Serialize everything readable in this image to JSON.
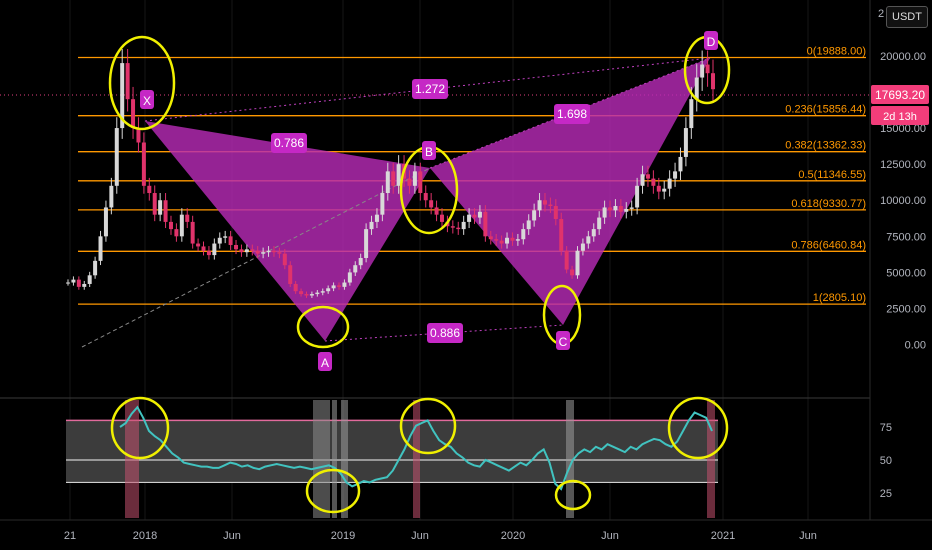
{
  "currency": "USDT",
  "price_label": "17693.20",
  "countdown_label": "2d 13h",
  "price_axis_top_partial": "2",
  "chart_data": {
    "type": "candlestick",
    "price_ticks": [
      "20000.00",
      "17500.00",
      "15000.00",
      "12500.00",
      "10000.00",
      "7500.00",
      "5000.00",
      "2500.00",
      "0.00"
    ],
    "rsi_ticks": [
      "75",
      "50",
      "25"
    ],
    "time_ticks": [
      "21",
      "2018",
      "Jun",
      "2019",
      "Jun",
      "2020",
      "Jun",
      "2021",
      "Jun"
    ],
    "fib_levels": [
      {
        "label": "0(19888.00)",
        "value": 19888.0
      },
      {
        "label": "0.236(15856.44)",
        "value": 15856.44
      },
      {
        "label": "0.382(13362.33)",
        "value": 13362.33
      },
      {
        "label": "0.5(11346.55)",
        "value": 11346.55
      },
      {
        "label": "0.618(9330.77)",
        "value": 9330.77
      },
      {
        "label": "0.786(6460.84)",
        "value": 6460.84
      },
      {
        "label": "1(2805.10)",
        "value": 2805.1
      }
    ],
    "pattern_points": [
      {
        "label": "X",
        "value": 16000
      },
      {
        "label": "A",
        "value": 3200
      },
      {
        "label": "B",
        "value": 13500
      },
      {
        "label": "C",
        "value": 4300
      },
      {
        "label": "D",
        "value": 19700
      }
    ],
    "ratios": [
      "1.272",
      "0.786",
      "1.698",
      "0.886"
    ],
    "price_series": [
      4300,
      4500,
      4000,
      4200,
      4800,
      5800,
      7500,
      9500,
      11000,
      15000,
      19500,
      17000,
      15000,
      14000,
      11000,
      10500,
      9000,
      10000,
      8500,
      8000,
      7500,
      9000,
      8500,
      7000,
      6800,
      6500,
      6200,
      7000,
      7400,
      7500,
      6900,
      6600,
      6400,
      6600,
      6500,
      6300,
      6400,
      6500,
      6400,
      6300,
      5500,
      4200,
      3700,
      3500,
      3400,
      3500,
      3600,
      3700,
      3900,
      4100,
      4000,
      4300,
      5000,
      5500,
      6000,
      8000,
      8500,
      9000,
      10500,
      12000,
      11000,
      12500,
      11500,
      11000,
      12000,
      10500,
      10000,
      9500,
      9000,
      8500,
      8200,
      8100,
      8000,
      8500,
      9000,
      8800,
      9200,
      7500,
      7300,
      7200,
      7000,
      7400,
      7200,
      7300,
      8000,
      8600,
      9300,
      10000,
      9700,
      9600,
      8700,
      6500,
      5200,
      4800,
      6500,
      7000,
      7500,
      8000,
      8800,
      9500,
      9300,
      9600,
      9200,
      9400,
      9500,
      11000,
      11800,
      11500,
      11000,
      10600,
      10800,
      11500,
      12000,
      13000,
      15000,
      17000,
      18500,
      19400,
      18800,
      17693
    ],
    "rsi_series": [
      75,
      78,
      85,
      90,
      82,
      72,
      68,
      65,
      60,
      55,
      52,
      48,
      47,
      46,
      45,
      45,
      44,
      44,
      46,
      48,
      47,
      45,
      46,
      44,
      43,
      45,
      46,
      47,
      46,
      45,
      44,
      45,
      44,
      43,
      44,
      45,
      46,
      44,
      40,
      33,
      30,
      32,
      34,
      33,
      35,
      36,
      37,
      42,
      50,
      58,
      68,
      76,
      78,
      80,
      72,
      65,
      62,
      60,
      55,
      52,
      48,
      46,
      45,
      50,
      48,
      46,
      44,
      42,
      45,
      48,
      46,
      50,
      55,
      58,
      48,
      32,
      28,
      40,
      50,
      55,
      58,
      56,
      60,
      58,
      62,
      60,
      58,
      56,
      60,
      58,
      62,
      64,
      66,
      65,
      62,
      60,
      64,
      72,
      80,
      86,
      84,
      82,
      72
    ],
    "rsi_band_upper": 80,
    "rsi_mid": 50,
    "rsi_band_lower": 33
  }
}
